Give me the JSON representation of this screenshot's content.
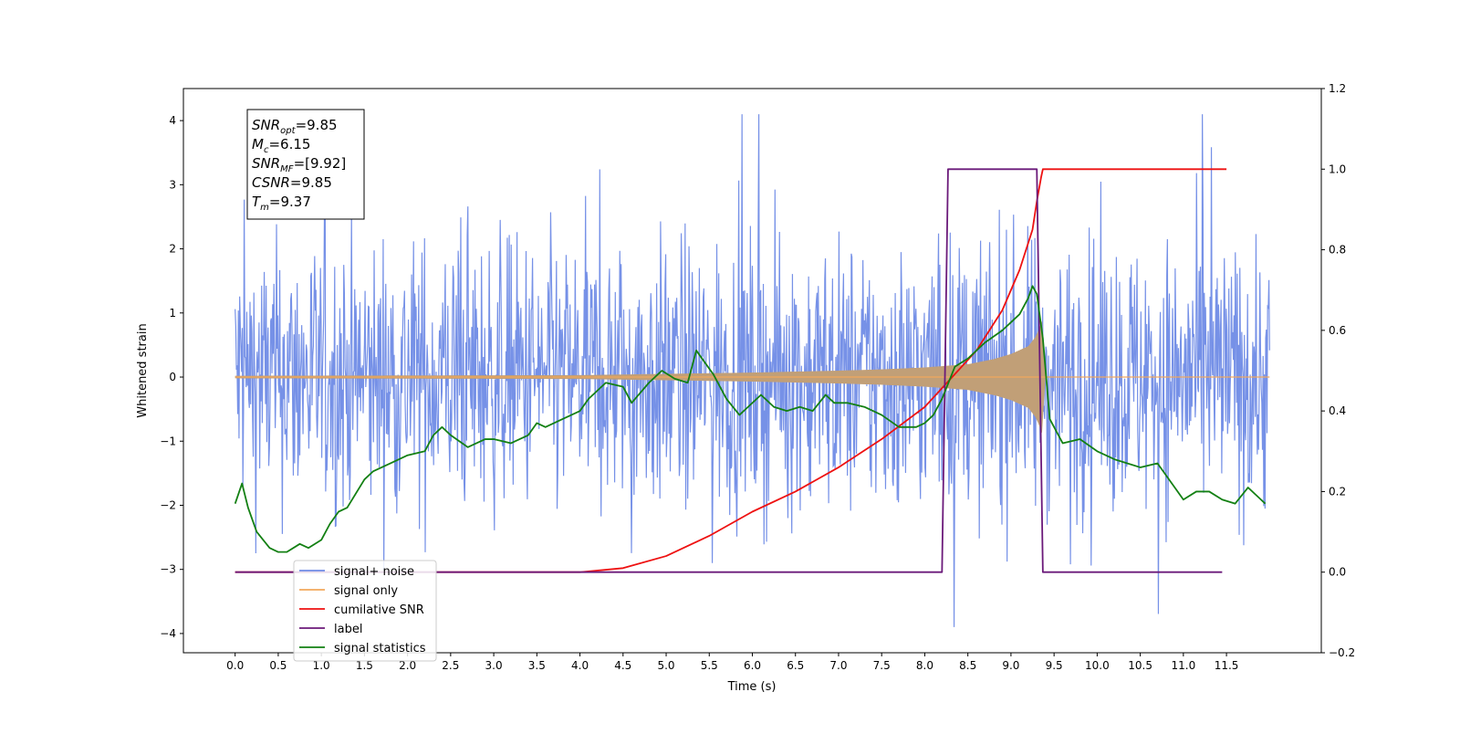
{
  "chart_data": {
    "type": "line",
    "title": "",
    "xlabel": "Time (s)",
    "ylabel": "Whitened strain",
    "ylabel_right": "",
    "xlim": [
      -0.6,
      12.6
    ],
    "ylim": [
      -4.3,
      4.5
    ],
    "ylim_right": [
      -0.2,
      1.2
    ],
    "x_ticks": [
      0.0,
      0.5,
      1.0,
      1.5,
      2.0,
      2.5,
      3.0,
      3.5,
      4.0,
      4.5,
      5.0,
      5.5,
      6.0,
      6.5,
      7.0,
      7.5,
      8.0,
      8.5,
      9.0,
      9.5,
      10.0,
      10.5,
      11.0,
      11.5
    ],
    "x_tick_labels": [
      "0.0",
      "0.5",
      "1.0",
      "1.5",
      "2.0",
      "2.5",
      "3.0",
      "3.5",
      "4.0",
      "4.5",
      "5.0",
      "5.5",
      "6.0",
      "6.5",
      "7.0",
      "7.5",
      "8.0",
      "8.5",
      "9.0",
      "9.5",
      "10.0",
      "10.5",
      "11.0",
      "11.5"
    ],
    "y_ticks": [
      4,
      3,
      2,
      1,
      0,
      -1,
      -2,
      -3,
      -4
    ],
    "y_tick_labels": [
      "4",
      "3",
      "2",
      "1",
      "0",
      "−1",
      "−2",
      "−3",
      "−4"
    ],
    "y_ticks_right": [
      1.2,
      1.0,
      0.8,
      0.6,
      0.4,
      0.2,
      0.0,
      -0.2
    ],
    "y_tick_labels_right": [
      "1.2",
      "1.0",
      "0.8",
      "0.6",
      "0.4",
      "0.2",
      "0.0",
      "−0.2"
    ],
    "grid": false,
    "legend_position": "lower-left",
    "annotation_box": {
      "lines": [
        {
          "base": "SNR",
          "sub": "opt",
          "rest": "=9.85"
        },
        {
          "base": "M",
          "sub": "c",
          "rest": "=6.15"
        },
        {
          "base": "SNR",
          "sub": "MF",
          "rest": "=[9.92]"
        },
        {
          "base": "CSNR",
          "sub": "",
          "rest": "=9.85"
        },
        {
          "base": "T",
          "sub": "m",
          "rest": "=9.37"
        }
      ]
    },
    "series": [
      {
        "name": "signal+ noise",
        "axis": "left",
        "color": "#6f8be6",
        "description": "white noise, sd about 0.9, range about -4 to 4.1, x from 0 to 12.0",
        "x_range": [
          0.0,
          12.0
        ]
      },
      {
        "name": "signal only",
        "axis": "left",
        "color": "#f3a85b",
        "envelope": {
          "x": [
            0.0,
            4.0,
            5.0,
            6.0,
            7.0,
            7.5,
            8.0,
            8.5,
            8.8,
            9.0,
            9.2,
            9.3,
            9.35,
            9.37,
            9.4,
            12.0
          ],
          "amplitude": [
            0.02,
            0.03,
            0.05,
            0.07,
            0.1,
            0.12,
            0.15,
            0.2,
            0.28,
            0.36,
            0.48,
            0.65,
            0.85,
            0.9,
            0.0,
            0.0
          ]
        }
      },
      {
        "name": "cumilative SNR",
        "axis": "right",
        "color": "#ee1111",
        "x": [
          0.0,
          4.0,
          4.5,
          5.0,
          5.5,
          6.0,
          6.5,
          7.0,
          7.5,
          8.0,
          8.3,
          8.6,
          8.9,
          9.1,
          9.25,
          9.3,
          9.35,
          9.37,
          9.5,
          11.5
        ],
        "values": [
          0.0,
          0.0,
          0.01,
          0.04,
          0.09,
          0.15,
          0.2,
          0.26,
          0.33,
          0.41,
          0.48,
          0.55,
          0.65,
          0.75,
          0.85,
          0.92,
          0.98,
          1.0,
          1.0,
          1.0
        ]
      },
      {
        "name": "label",
        "axis": "right",
        "color": "#6b1a7a",
        "x": [
          0.0,
          8.2,
          8.27,
          9.3,
          9.37,
          11.45
        ],
        "values": [
          0.0,
          0.0,
          1.0,
          1.0,
          0.0,
          0.0
        ]
      },
      {
        "name": "signal statistics",
        "axis": "right",
        "color": "#138013",
        "x": [
          0.0,
          0.08,
          0.15,
          0.25,
          0.4,
          0.5,
          0.6,
          0.75,
          0.85,
          1.0,
          1.1,
          1.2,
          1.3,
          1.5,
          1.6,
          1.8,
          2.0,
          2.2,
          2.3,
          2.4,
          2.5,
          2.7,
          2.9,
          3.0,
          3.2,
          3.4,
          3.5,
          3.6,
          3.8,
          4.0,
          4.1,
          4.3,
          4.5,
          4.6,
          4.8,
          4.95,
          5.1,
          5.25,
          5.35,
          5.45,
          5.55,
          5.7,
          5.85,
          5.95,
          6.1,
          6.25,
          6.4,
          6.55,
          6.7,
          6.85,
          6.95,
          7.1,
          7.3,
          7.5,
          7.7,
          7.9,
          8.0,
          8.1,
          8.2,
          8.35,
          8.5,
          8.7,
          8.9,
          9.0,
          9.1,
          9.2,
          9.25,
          9.3,
          9.37,
          9.45,
          9.6,
          9.8,
          10.0,
          10.2,
          10.5,
          10.7,
          10.9,
          11.0,
          11.15,
          11.3,
          11.45,
          11.6,
          11.75,
          11.9,
          11.95
        ],
        "values": [
          0.17,
          0.22,
          0.16,
          0.1,
          0.06,
          0.05,
          0.05,
          0.07,
          0.06,
          0.08,
          0.12,
          0.15,
          0.16,
          0.23,
          0.25,
          0.27,
          0.29,
          0.3,
          0.34,
          0.36,
          0.34,
          0.31,
          0.33,
          0.33,
          0.32,
          0.34,
          0.37,
          0.36,
          0.38,
          0.4,
          0.43,
          0.47,
          0.46,
          0.42,
          0.47,
          0.5,
          0.48,
          0.47,
          0.55,
          0.52,
          0.49,
          0.43,
          0.39,
          0.41,
          0.44,
          0.41,
          0.4,
          0.41,
          0.4,
          0.44,
          0.42,
          0.42,
          0.41,
          0.39,
          0.36,
          0.36,
          0.37,
          0.39,
          0.43,
          0.51,
          0.53,
          0.57,
          0.6,
          0.62,
          0.64,
          0.68,
          0.71,
          0.69,
          0.58,
          0.38,
          0.32,
          0.33,
          0.3,
          0.28,
          0.26,
          0.27,
          0.21,
          0.18,
          0.2,
          0.2,
          0.18,
          0.17,
          0.21,
          0.18,
          0.17
        ]
      }
    ]
  }
}
